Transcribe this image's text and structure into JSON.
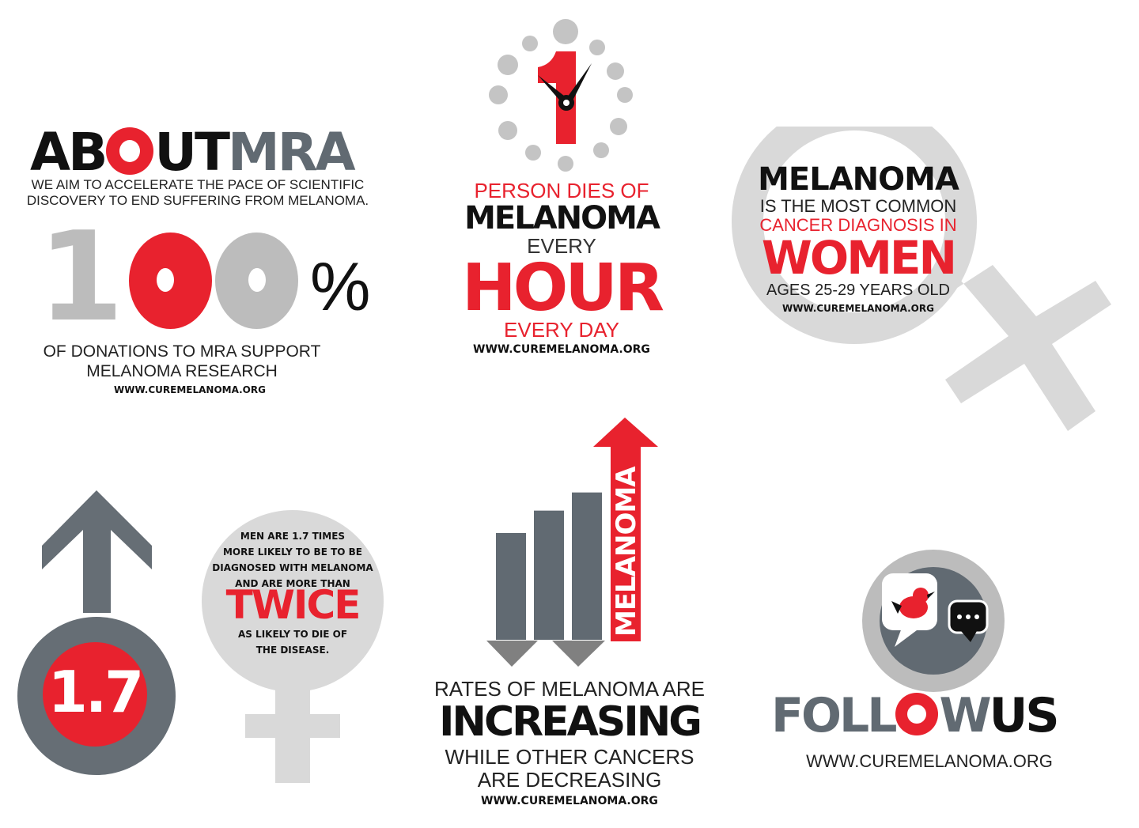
{
  "colors": {
    "red": "#e8222e",
    "black": "#111111",
    "dark_grey": "#616a72",
    "mid_grey": "#808080",
    "light_grey": "#bcbcbc",
    "pale_grey": "#d9d9d9"
  },
  "about": {
    "title_part1": "AB",
    "title_o": "O",
    "title_part2": "UT",
    "title_part3": "MRA",
    "mission_line1": "WE AIM TO ACCELERATE THE PACE OF SCIENTIFIC",
    "mission_line2": "DISCOVERY TO END SUFFERING FROM MELANOMA.",
    "stat_one": "1",
    "stat_zero1": "0",
    "stat_zero2": "0",
    "stat_percent": "%",
    "caption_line1": "OF DONATIONS TO MRA SUPPORT",
    "caption_line2": "MELANOMA RESEARCH",
    "url": "WWW.CUREMELANOMA.ORG"
  },
  "hour": {
    "clock_number": "1",
    "line1": "PERSON DIES OF",
    "line2": "MELANOMA",
    "line3": "EVERY",
    "line4": "HOUR",
    "line5": "EVERY DAY",
    "url": "WWW.CUREMELANOMA.ORG"
  },
  "women": {
    "line1": "MELANOMA",
    "line2": "IS THE MOST COMMON",
    "line3": "CANCER DIAGNOSIS IN",
    "line4": "WOMEN",
    "line5": "AGES 25-29 YEARS OLD",
    "url": "WWW.CUREMELANOMA.ORG"
  },
  "men": {
    "stat": "1.7",
    "line1": "MEN ARE 1.7 TIMES",
    "line2": "MORE LIKELY TO BE TO BE",
    "line3": "DIAGNOSED WITH MELANOMA",
    "line4": "AND ARE MORE THAN",
    "line5": "TWICE",
    "line6": "AS LIKELY TO DIE OF",
    "line7": "THE DISEASE."
  },
  "rates": {
    "arrow_label": "MELANOMA",
    "bar_values": [
      1,
      1.21,
      1.38
    ],
    "line1": "RATES OF MELANOMA ARE",
    "line2": "INCREASING",
    "line3": "WHILE OTHER CANCERS",
    "line4": "ARE DECREASING",
    "url": "WWW.CUREMELANOMA.ORG"
  },
  "follow": {
    "title_part1": "FOLL",
    "title_o": "O",
    "title_part2": "W",
    "title_part3": "US",
    "url": "WWW.CUREMELANOMA.ORG"
  }
}
